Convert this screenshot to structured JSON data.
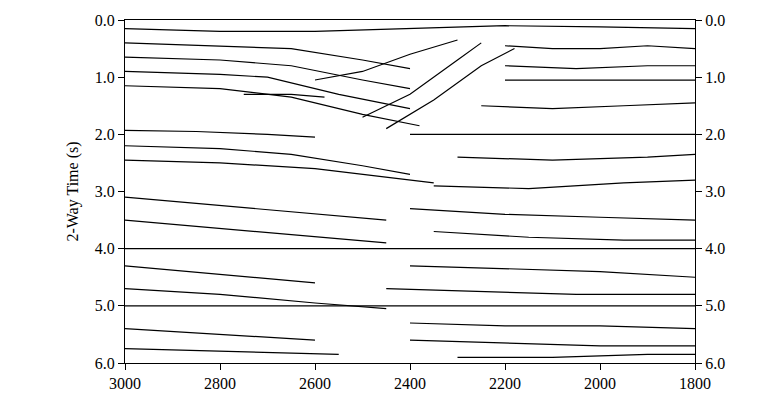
{
  "chart_data": {
    "type": "line",
    "color": "#000000",
    "grid": false,
    "ylabel": "2-Way Time (s)",
    "xlim": [
      3000,
      1800
    ],
    "xticks": [
      3000,
      2800,
      2600,
      2400,
      2200,
      2000,
      1800
    ],
    "ylim": [
      6.0,
      0.0
    ],
    "yticks": [
      {
        "value": 0,
        "label": "0.0"
      },
      {
        "value": 1,
        "label": "1.0"
      },
      {
        "value": 2,
        "label": "2.0"
      },
      {
        "value": 3,
        "label": "3.0"
      },
      {
        "value": 4,
        "label": "4.0"
      },
      {
        "value": 5,
        "label": "5.0"
      },
      {
        "value": 6,
        "label": "6.0"
      }
    ],
    "y2lim": [
      6.0,
      0.0
    ],
    "y2ticks": [
      {
        "value": 0,
        "label": "0.0"
      },
      {
        "value": 1,
        "label": "1.0"
      },
      {
        "value": 2,
        "label": "2.0"
      },
      {
        "value": 3,
        "label": "3.0"
      },
      {
        "value": 4,
        "label": "4.0"
      },
      {
        "value": 5,
        "label": "5.0"
      },
      {
        "value": 6,
        "label": "6.0"
      }
    ],
    "series": [
      {
        "x": [
          3000,
          2800,
          2600,
          2400,
          2200,
          2000,
          1800
        ],
        "values": [
          0.15,
          0.2,
          0.2,
          0.15,
          0.1,
          0.12,
          0.15
        ]
      },
      {
        "x": [
          3000,
          2800,
          2650,
          2500,
          2400
        ],
        "values": [
          0.4,
          0.45,
          0.5,
          0.7,
          0.85
        ]
      },
      {
        "x": [
          3000,
          2800,
          2650,
          2500,
          2400
        ],
        "values": [
          0.65,
          0.7,
          0.8,
          1.05,
          1.2
        ]
      },
      {
        "x": [
          3000,
          2800,
          2700,
          2550,
          2400
        ],
        "values": [
          0.9,
          0.95,
          1.0,
          1.3,
          1.55
        ]
      },
      {
        "x": [
          2750,
          2650,
          2580
        ],
        "values": [
          1.3,
          1.3,
          1.35
        ]
      },
      {
        "x": [
          3000,
          2800,
          2650,
          2500,
          2380
        ],
        "values": [
          1.15,
          1.2,
          1.35,
          1.65,
          1.85
        ]
      },
      {
        "x": [
          3000,
          2850,
          2700,
          2600
        ],
        "values": [
          1.93,
          1.95,
          2.0,
          2.05
        ]
      },
      {
        "x": [
          3000,
          2800,
          2650,
          2500,
          2400
        ],
        "values": [
          2.2,
          2.25,
          2.35,
          2.55,
          2.7
        ]
      },
      {
        "x": [
          3000,
          2800,
          2600,
          2450,
          2350
        ],
        "values": [
          2.45,
          2.5,
          2.6,
          2.75,
          2.85
        ]
      },
      {
        "x": [
          2500,
          2400,
          2300,
          2250
        ],
        "values": [
          1.7,
          1.3,
          0.7,
          0.4
        ]
      },
      {
        "x": [
          2450,
          2350,
          2250,
          2180
        ],
        "values": [
          1.9,
          1.4,
          0.8,
          0.5
        ]
      },
      {
        "x": [
          2600,
          2500,
          2400,
          2300
        ],
        "values": [
          1.05,
          0.9,
          0.6,
          0.35
        ]
      },
      {
        "x": [
          2200,
          2100,
          2000,
          1900,
          1800
        ],
        "values": [
          0.45,
          0.5,
          0.5,
          0.45,
          0.5
        ]
      },
      {
        "x": [
          2200,
          2050,
          1900,
          1800
        ],
        "values": [
          0.8,
          0.85,
          0.8,
          0.8
        ]
      },
      {
        "x": [
          2200,
          2000,
          1800
        ],
        "values": [
          1.05,
          1.05,
          1.05
        ]
      },
      {
        "x": [
          2250,
          2100,
          1950,
          1800
        ],
        "values": [
          1.5,
          1.55,
          1.5,
          1.45
        ]
      },
      {
        "x": [
          2400,
          2100,
          1800
        ],
        "values": [
          2.0,
          2.0,
          2.0
        ]
      },
      {
        "x": [
          2300,
          2100,
          1900,
          1800
        ],
        "values": [
          2.4,
          2.45,
          2.4,
          2.35
        ]
      },
      {
        "x": [
          2350,
          2150,
          1950,
          1800
        ],
        "values": [
          2.9,
          2.95,
          2.85,
          2.8
        ]
      },
      {
        "x": [
          3000,
          2800,
          2600,
          2450
        ],
        "values": [
          3.1,
          3.25,
          3.4,
          3.5
        ]
      },
      {
        "x": [
          3000,
          2800,
          2600,
          2450
        ],
        "values": [
          3.5,
          3.65,
          3.8,
          3.9
        ]
      },
      {
        "x": [
          3000,
          2400,
          1800
        ],
        "values": [
          4.0,
          4.0,
          4.0
        ]
      },
      {
        "x": [
          3000,
          2800,
          2600
        ],
        "values": [
          4.3,
          4.45,
          4.6
        ]
      },
      {
        "x": [
          3000,
          2800,
          2600,
          2450
        ],
        "values": [
          4.7,
          4.8,
          4.95,
          5.05
        ]
      },
      {
        "x": [
          3000,
          2400,
          1800
        ],
        "values": [
          5.0,
          5.0,
          5.0
        ]
      },
      {
        "x": [
          3000,
          2800,
          2600
        ],
        "values": [
          5.4,
          5.5,
          5.6
        ]
      },
      {
        "x": [
          3000,
          2750,
          2550
        ],
        "values": [
          5.75,
          5.8,
          5.85
        ]
      },
      {
        "x": [
          2400,
          2200,
          2000,
          1800
        ],
        "values": [
          3.3,
          3.4,
          3.45,
          3.5
        ]
      },
      {
        "x": [
          2350,
          2150,
          1950,
          1800
        ],
        "values": [
          3.7,
          3.8,
          3.85,
          3.85
        ]
      },
      {
        "x": [
          2400,
          2200,
          2000,
          1800
        ],
        "values": [
          4.3,
          4.35,
          4.4,
          4.5
        ]
      },
      {
        "x": [
          2450,
          2250,
          2050,
          1800
        ],
        "values": [
          4.7,
          4.75,
          4.8,
          4.8
        ]
      },
      {
        "x": [
          2400,
          2200,
          2000,
          1800
        ],
        "values": [
          5.3,
          5.35,
          5.35,
          5.4
        ]
      },
      {
        "x": [
          2400,
          2200,
          2000,
          1800
        ],
        "values": [
          5.6,
          5.65,
          5.7,
          5.7
        ]
      },
      {
        "x": [
          2300,
          2100,
          1900,
          1800
        ],
        "values": [
          5.9,
          5.9,
          5.85,
          5.85
        ]
      }
    ]
  }
}
